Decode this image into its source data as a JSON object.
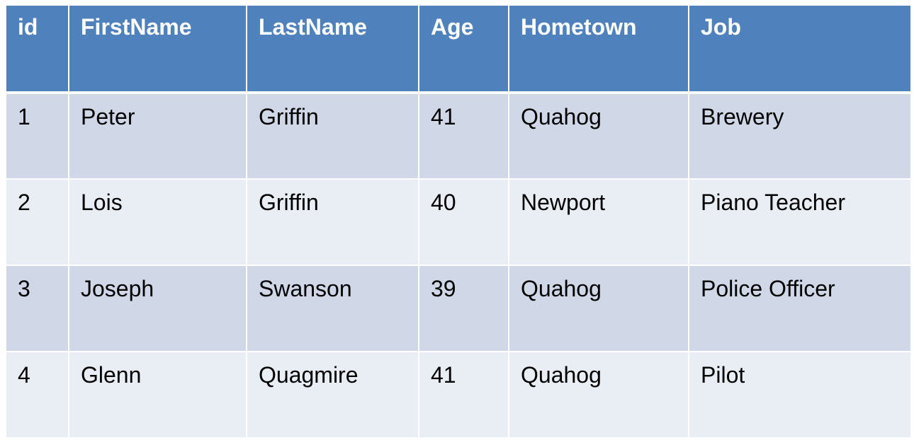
{
  "table": {
    "columns": [
      "id",
      "FirstName",
      "LastName",
      "Age",
      "Hometown",
      "Job"
    ],
    "rows": [
      [
        "1",
        "Peter",
        "Griffin",
        "41",
        "Quahog",
        "Brewery"
      ],
      [
        "2",
        "Lois",
        "Griffin",
        "40",
        "Newport",
        "Piano Teacher"
      ],
      [
        "3",
        "Joseph",
        "Swanson",
        "39",
        "Quahog",
        "Police Officer"
      ],
      [
        "4",
        "Glenn",
        "Quagmire",
        "41",
        "Quahog",
        "Pilot"
      ]
    ],
    "colors": {
      "header_bg": "#4f81bd",
      "header_text": "#ffffff",
      "row_odd_bg": "#d0d8e8",
      "row_even_bg": "#e9edf4",
      "grid_line": "#ffffff"
    }
  }
}
